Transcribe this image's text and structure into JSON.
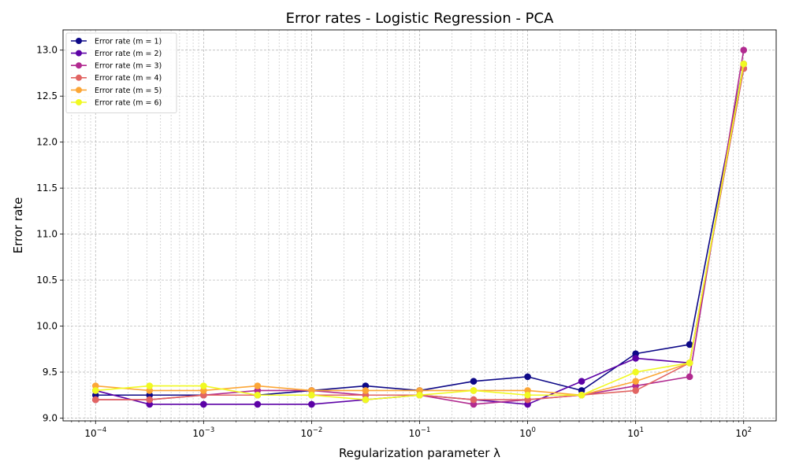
{
  "chart_data": {
    "type": "line",
    "title": "Error rates - Logistic Regression - PCA",
    "xlabel": "Regularization parameter λ",
    "ylabel": "Error rate",
    "x_scale": "log",
    "xlim": [
      5e-05,
      200
    ],
    "ylim": [
      8.97,
      13.22
    ],
    "x_major_ticks": [
      0.0001,
      0.001,
      0.01,
      0.1,
      1,
      10,
      100
    ],
    "x_tick_labels": [
      {
        "base": "10",
        "exp": "−4"
      },
      {
        "base": "10",
        "exp": "−3"
      },
      {
        "base": "10",
        "exp": "−2"
      },
      {
        "base": "10",
        "exp": "−1"
      },
      {
        "base": "10",
        "exp": "0"
      },
      {
        "base": "10",
        "exp": "1"
      },
      {
        "base": "10",
        "exp": "2"
      }
    ],
    "y_ticks": [
      9.0,
      9.5,
      10.0,
      10.5,
      11.0,
      11.5,
      12.0,
      12.5,
      13.0
    ],
    "y_tick_labels": [
      "9.0",
      "9.5",
      "10.0",
      "10.5",
      "11.0",
      "11.5",
      "12.0",
      "12.5",
      "13.0"
    ],
    "grid": true,
    "grid_minor": true,
    "legend_position": "upper-left",
    "x": [
      0.0001,
      0.000316,
      0.001,
      0.00316,
      0.01,
      0.0316,
      0.1,
      0.316,
      1,
      3.16,
      10,
      31.6,
      100
    ],
    "series": [
      {
        "name": "Error rate (m = 1)",
        "color": "#0d0887",
        "values": [
          9.25,
          9.25,
          9.25,
          9.25,
          9.3,
          9.35,
          9.3,
          9.4,
          9.45,
          9.3,
          9.7,
          9.8,
          12.85
        ]
      },
      {
        "name": "Error rate (m = 2)",
        "color": "#5c01a6",
        "values": [
          9.3,
          9.15,
          9.15,
          9.15,
          9.15,
          9.2,
          9.25,
          9.2,
          9.15,
          9.4,
          9.65,
          9.6,
          12.8
        ]
      },
      {
        "name": "Error rate (m = 3)",
        "color": "#b12a90",
        "values": [
          9.2,
          9.2,
          9.25,
          9.3,
          9.3,
          9.25,
          9.25,
          9.15,
          9.2,
          9.25,
          9.35,
          9.45,
          13.0
        ]
      },
      {
        "name": "Error rate (m = 4)",
        "color": "#e16462",
        "values": [
          9.2,
          9.2,
          9.25,
          9.25,
          9.25,
          9.25,
          9.25,
          9.2,
          9.2,
          9.25,
          9.3,
          9.6,
          12.8
        ]
      },
      {
        "name": "Error rate (m = 5)",
        "color": "#fca636",
        "values": [
          9.35,
          9.3,
          9.3,
          9.35,
          9.3,
          9.3,
          9.3,
          9.3,
          9.3,
          9.25,
          9.4,
          9.6,
          12.85
        ]
      },
      {
        "name": "Error rate (m = 6)",
        "color": "#f0f921",
        "values": [
          9.3,
          9.35,
          9.35,
          9.25,
          9.25,
          9.2,
          9.25,
          9.3,
          9.25,
          9.25,
          9.5,
          9.6,
          12.85
        ]
      }
    ]
  }
}
